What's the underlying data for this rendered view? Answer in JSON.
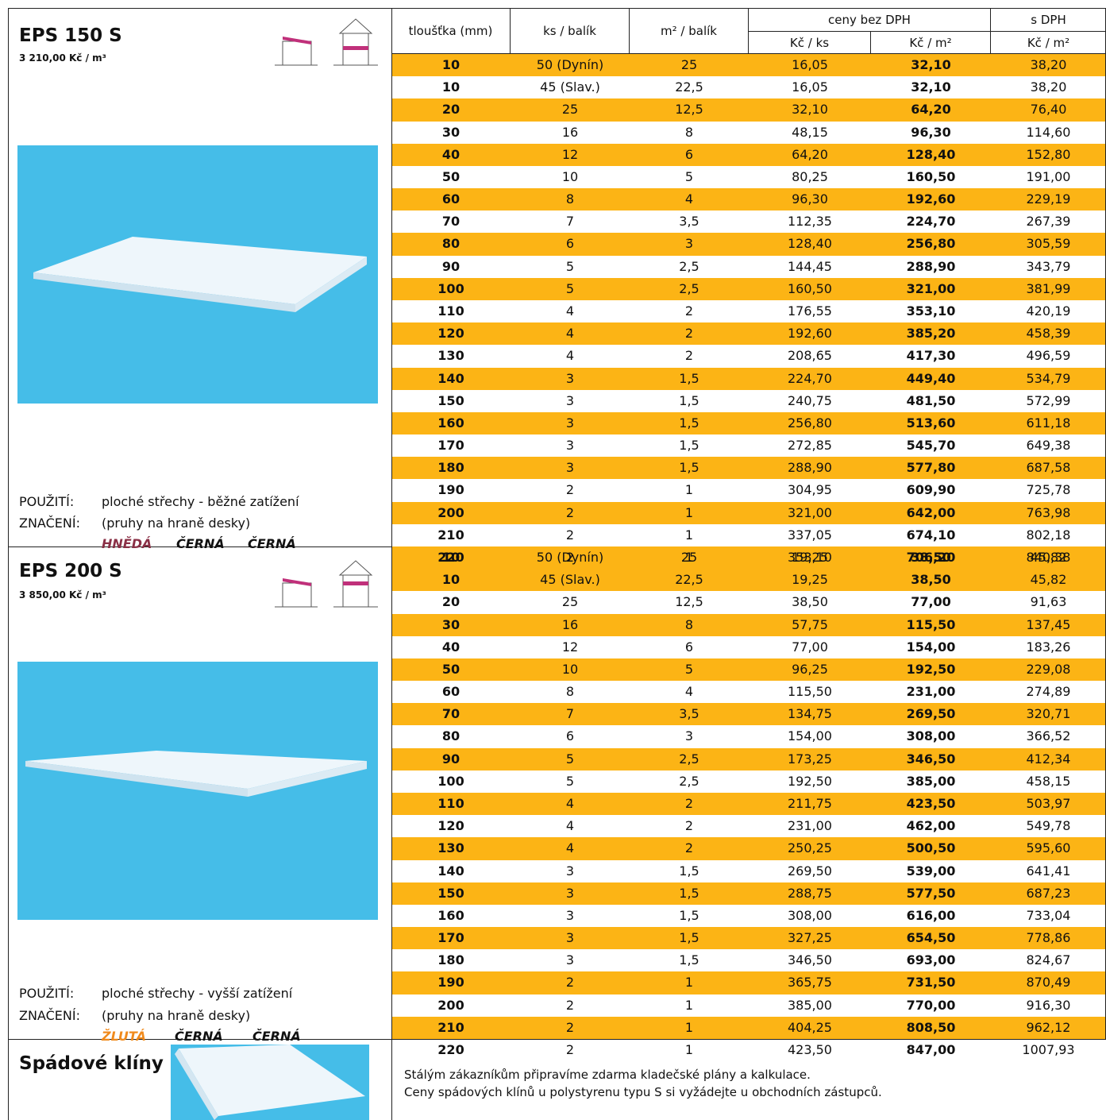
{
  "header": {
    "thickness": "tloušťka (mm)",
    "pcs": "ks / balík",
    "area": "m² / balík",
    "prices_net": "ceny bez DPH",
    "prices_vat": "s DPH",
    "net_pcs": "Kč / ks",
    "net_m2": "Kč / m²",
    "vat_m2": "Kč / m²"
  },
  "sections": [
    {
      "title": "EPS 150 S",
      "price": "3 210,00 Kč / m³",
      "use_label": "POUŽITÍ:",
      "use": "ploché střechy - běžné zatížení",
      "mark_label": "ZNAČENÍ:",
      "mark": "(pruhy na hraně desky)",
      "colors": [
        "HNĚDÁ",
        "ČERNÁ",
        "ČERNÁ"
      ],
      "rows": [
        [
          "10",
          "50 (Dynín)",
          "25",
          "16,05",
          "32,10",
          "38,20"
        ],
        [
          "10",
          "45 (Slav.)",
          "22,5",
          "16,05",
          "32,10",
          "38,20"
        ],
        [
          "20",
          "25",
          "12,5",
          "32,10",
          "64,20",
          "76,40"
        ],
        [
          "30",
          "16",
          "8",
          "48,15",
          "96,30",
          "114,60"
        ],
        [
          "40",
          "12",
          "6",
          "64,20",
          "128,40",
          "152,80"
        ],
        [
          "50",
          "10",
          "5",
          "80,25",
          "160,50",
          "191,00"
        ],
        [
          "60",
          "8",
          "4",
          "96,30",
          "192,60",
          "229,19"
        ],
        [
          "70",
          "7",
          "3,5",
          "112,35",
          "224,70",
          "267,39"
        ],
        [
          "80",
          "6",
          "3",
          "128,40",
          "256,80",
          "305,59"
        ],
        [
          "90",
          "5",
          "2,5",
          "144,45",
          "288,90",
          "343,79"
        ],
        [
          "100",
          "5",
          "2,5",
          "160,50",
          "321,00",
          "381,99"
        ],
        [
          "110",
          "4",
          "2",
          "176,55",
          "353,10",
          "420,19"
        ],
        [
          "120",
          "4",
          "2",
          "192,60",
          "385,20",
          "458,39"
        ],
        [
          "130",
          "4",
          "2",
          "208,65",
          "417,30",
          "496,59"
        ],
        [
          "140",
          "3",
          "1,5",
          "224,70",
          "449,40",
          "534,79"
        ],
        [
          "150",
          "3",
          "1,5",
          "240,75",
          "481,50",
          "572,99"
        ],
        [
          "160",
          "3",
          "1,5",
          "256,80",
          "513,60",
          "611,18"
        ],
        [
          "170",
          "3",
          "1,5",
          "272,85",
          "545,70",
          "649,38"
        ],
        [
          "180",
          "3",
          "1,5",
          "288,90",
          "577,80",
          "687,58"
        ],
        [
          "190",
          "2",
          "1",
          "304,95",
          "609,90",
          "725,78"
        ],
        [
          "200",
          "2",
          "1",
          "321,00",
          "642,00",
          "763,98"
        ],
        [
          "210",
          "2",
          "1",
          "337,05",
          "674,10",
          "802,18"
        ],
        [
          "220",
          "2",
          "1",
          "353,10",
          "706,20",
          "840,38"
        ]
      ]
    },
    {
      "title": "EPS 200 S",
      "price": "3 850,00 Kč / m³",
      "use_label": "POUŽITÍ:",
      "use": "ploché střechy - vyšší zatížení",
      "mark_label": "ZNAČENÍ:",
      "mark": "(pruhy na hraně desky)",
      "colors": [
        "ŽLUTÁ",
        "ČERNÁ",
        "ČERNÁ"
      ],
      "rows": [
        [
          "10",
          "50 (Dynín)",
          "25",
          "19,25",
          "38,50",
          "45,82"
        ],
        [
          "10",
          "45 (Slav.)",
          "22,5",
          "19,25",
          "38,50",
          "45,82"
        ],
        [
          "20",
          "25",
          "12,5",
          "38,50",
          "77,00",
          "91,63"
        ],
        [
          "30",
          "16",
          "8",
          "57,75",
          "115,50",
          "137,45"
        ],
        [
          "40",
          "12",
          "6",
          "77,00",
          "154,00",
          "183,26"
        ],
        [
          "50",
          "10",
          "5",
          "96,25",
          "192,50",
          "229,08"
        ],
        [
          "60",
          "8",
          "4",
          "115,50",
          "231,00",
          "274,89"
        ],
        [
          "70",
          "7",
          "3,5",
          "134,75",
          "269,50",
          "320,71"
        ],
        [
          "80",
          "6",
          "3",
          "154,00",
          "308,00",
          "366,52"
        ],
        [
          "90",
          "5",
          "2,5",
          "173,25",
          "346,50",
          "412,34"
        ],
        [
          "100",
          "5",
          "2,5",
          "192,50",
          "385,00",
          "458,15"
        ],
        [
          "110",
          "4",
          "2",
          "211,75",
          "423,50",
          "503,97"
        ],
        [
          "120",
          "4",
          "2",
          "231,00",
          "462,00",
          "549,78"
        ],
        [
          "130",
          "4",
          "2",
          "250,25",
          "500,50",
          "595,60"
        ],
        [
          "140",
          "3",
          "1,5",
          "269,50",
          "539,00",
          "641,41"
        ],
        [
          "150",
          "3",
          "1,5",
          "288,75",
          "577,50",
          "687,23"
        ],
        [
          "160",
          "3",
          "1,5",
          "308,00",
          "616,00",
          "733,04"
        ],
        [
          "170",
          "3",
          "1,5",
          "327,25",
          "654,50",
          "778,86"
        ],
        [
          "180",
          "3",
          "1,5",
          "346,50",
          "693,00",
          "824,67"
        ],
        [
          "190",
          "2",
          "1",
          "365,75",
          "731,50",
          "870,49"
        ],
        [
          "200",
          "2",
          "1",
          "385,00",
          "770,00",
          "916,30"
        ],
        [
          "210",
          "2",
          "1",
          "404,25",
          "808,50",
          "962,12"
        ],
        [
          "220",
          "2",
          "1",
          "423,50",
          "847,00",
          "1007,93"
        ]
      ]
    }
  ],
  "wedges": {
    "title": "Spádové klíny",
    "lines": [
      "Stálým zákazníkům připravíme zdarma kladečské plány a kalkulace.",
      "Ceny spádových klínů u polystyrenu typu S si vyžádejte u obchodních zástupců."
    ]
  }
}
